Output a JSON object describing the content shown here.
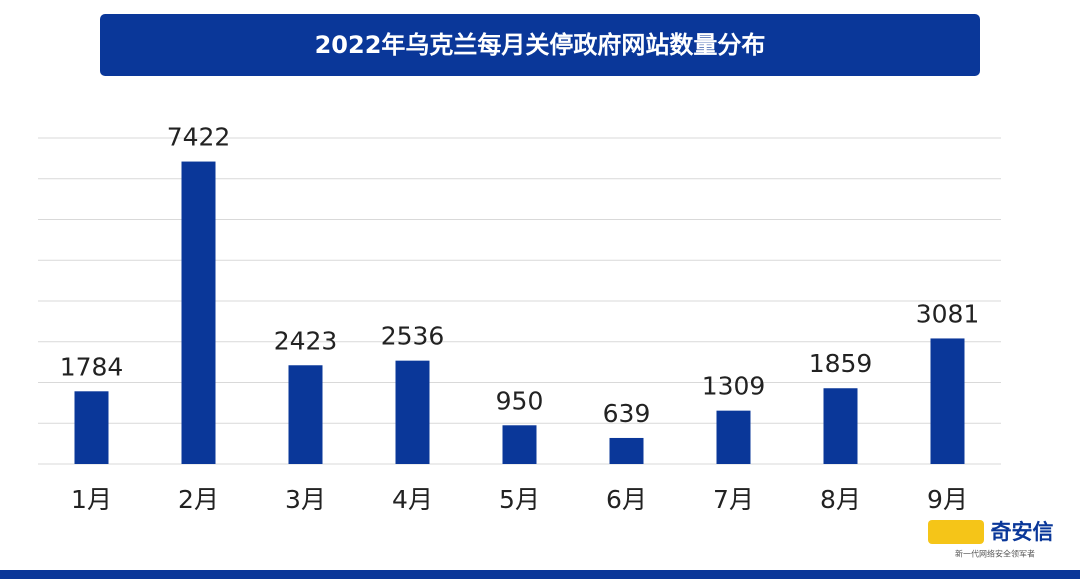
{
  "chart_data": {
    "type": "bar",
    "title": "2022年乌克兰每月关停政府网站数量分布",
    "categories": [
      "1月",
      "2月",
      "3月",
      "4月",
      "5月",
      "6月",
      "7月",
      "8月",
      "9月"
    ],
    "values": [
      1784,
      7422,
      2423,
      2536,
      950,
      639,
      1309,
      1859,
      3081
    ],
    "color": "#0a3799",
    "ylim": [
      0,
      8000
    ],
    "yticks": [
      0,
      1000,
      2000,
      3000,
      4000,
      5000,
      6000,
      7000,
      8000
    ],
    "grid": true
  },
  "watermark": {
    "name": "奇安信",
    "tagline": "新一代网络安全领军者"
  }
}
